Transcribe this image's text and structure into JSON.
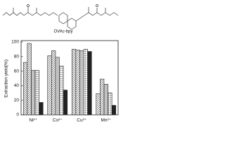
{
  "structure": {
    "label": "OVAc-bpy"
  },
  "chart_data": {
    "type": "bar",
    "y_label": "Extraction yield(%)",
    "categories": [
      "Ni²⁺",
      "Co²⁺",
      "Cu²⁺",
      "Mn²⁺"
    ],
    "series": [
      {
        "color": "#ffffff",
        "pattern": "diag-down",
        "values": [
          72,
          81,
          90,
          29
        ]
      },
      {
        "color": "#ffffff",
        "pattern": "diag-up",
        "values": [
          98,
          88,
          89,
          49
        ]
      },
      {
        "color": "#ffffff",
        "pattern": "vertical",
        "values": [
          61,
          79,
          88,
          42
        ]
      },
      {
        "color": "#ffffff",
        "pattern": "cross",
        "values": [
          61,
          67,
          90,
          30
        ]
      },
      {
        "color": "#222222",
        "pattern": "none",
        "values": [
          17,
          34,
          87,
          13
        ]
      }
    ],
    "ylim": [
      0,
      100
    ],
    "yticks": [
      0,
      20,
      40,
      60,
      80,
      100
    ],
    "grid": false
  }
}
